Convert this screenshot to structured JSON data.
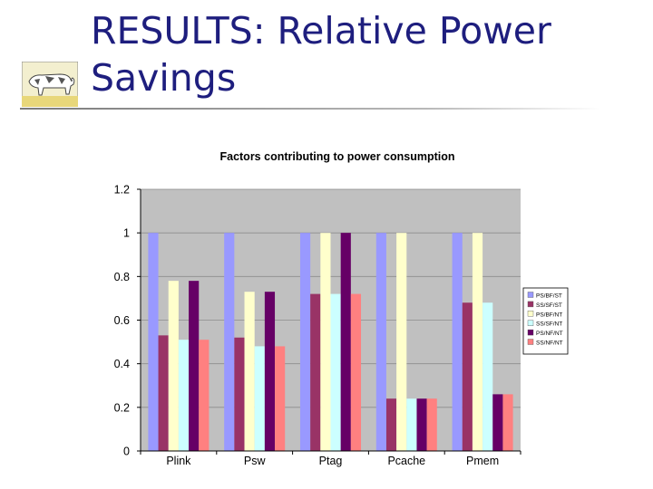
{
  "slide": {
    "title": "RESULTS: Relative Power Savings"
  },
  "chart_data": {
    "type": "bar",
    "title": "Factors contributing to power consumption",
    "xlabel": "",
    "ylabel": "",
    "categories": [
      "Plink",
      "Psw",
      "Ptag",
      "Pcache",
      "Pmem"
    ],
    "series": [
      {
        "name": "PS/BF/ST",
        "color": "#9999ff",
        "values": [
          1,
          1,
          1,
          1,
          1
        ]
      },
      {
        "name": "SS/SF/ST",
        "color": "#993366",
        "values": [
          0.53,
          0.52,
          0.72,
          0.24,
          0.68
        ]
      },
      {
        "name": "PS/BF/NT",
        "color": "#ffffcc",
        "values": [
          0.78,
          0.73,
          1,
          1,
          1
        ]
      },
      {
        "name": "SS/SF/NT",
        "color": "#ccffff",
        "values": [
          0.51,
          0.48,
          0.72,
          0.24,
          0.68
        ]
      },
      {
        "name": "PS/NF/NT",
        "color": "#660066",
        "values": [
          0.78,
          0.73,
          1,
          0.24,
          0.26
        ]
      },
      {
        "name": "SS/NF/NT",
        "color": "#ff8080",
        "values": [
          0.51,
          0.48,
          0.72,
          0.24,
          0.26
        ]
      }
    ],
    "ylim": [
      0,
      1.2
    ],
    "yticks": [
      "0",
      "0.2",
      "0.4",
      "0.6",
      "0.8",
      "1",
      "1.2"
    ],
    "grid": true,
    "legend": "right",
    "plot_background": "#c0c0c0"
  }
}
